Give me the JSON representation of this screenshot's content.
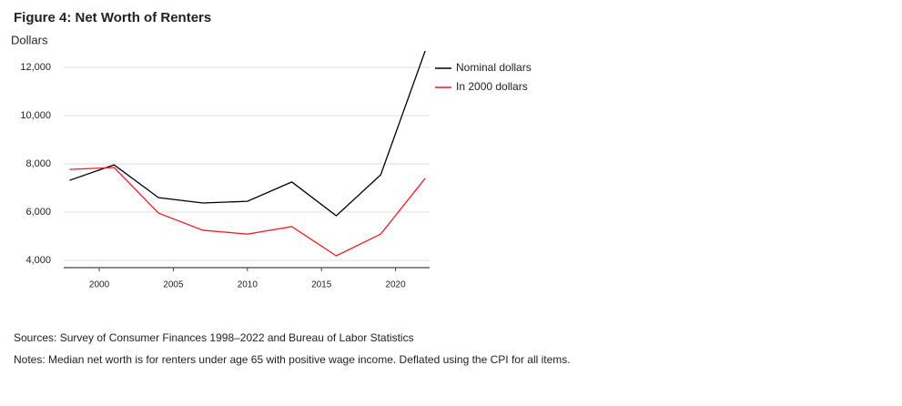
{
  "chart_data": {
    "type": "line",
    "title": "Figure 4: Net Worth of Renters",
    "ylabel": "Dollars",
    "x": [
      1998,
      2001,
      2004,
      2007,
      2010,
      2013,
      2016,
      2019,
      2022
    ],
    "series": [
      {
        "name": "Nominal dollars",
        "color": "#000000",
        "values": [
          7320,
          7960,
          6600,
          6380,
          6450,
          7250,
          5850,
          7550,
          12680
        ]
      },
      {
        "name": "In 2000 dollars",
        "color": "#ee1c25",
        "values": [
          7770,
          7850,
          5960,
          5250,
          5090,
          5400,
          4190,
          5090,
          7400
        ]
      }
    ],
    "xlim": [
      1997.6,
      2022.3
    ],
    "xticks": [
      2000,
      2005,
      2010,
      2015,
      2020
    ],
    "ylim": [
      3700,
      12700
    ],
    "yticks": [
      {
        "value": 4000,
        "label": "4,000"
      },
      {
        "value": 6000,
        "label": "6,000"
      },
      {
        "value": 8000,
        "label": "8,000"
      },
      {
        "value": 10000,
        "label": "10,000"
      },
      {
        "value": 12000,
        "label": "12,000"
      }
    ],
    "grid": true,
    "legend": "right",
    "sources": "Sources: Survey of Consumer Finances 1998–2022 and Bureau of Labor Statistics",
    "notes": "Notes: Median net worth is for renters under age 65 with positive wage income. Deflated using the CPI for all items."
  }
}
